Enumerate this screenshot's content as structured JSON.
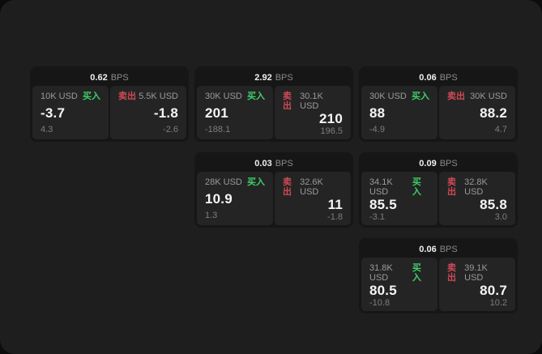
{
  "labels": {
    "buy": "买入",
    "sell": "卖出",
    "bps": "BPS"
  },
  "colors": {
    "page_bg": "#0c0c0c",
    "window_bg": "#1e1e1e",
    "card_bg": "#161616",
    "tile_bg": "#242424",
    "text_primary": "#f0f0f0",
    "text_muted": "#8a8a8a",
    "buy_accent": "#3ecf68",
    "sell_accent": "#cf4a56"
  },
  "cards": [
    {
      "bps": "0.62",
      "col": 1,
      "row": 1,
      "buy": {
        "amount": "10K USD",
        "price": "-3.7",
        "change": "4.3"
      },
      "sell": {
        "amount": "5.5K USD",
        "price": "-1.8",
        "change": "-2.6"
      }
    },
    {
      "bps": "2.92",
      "col": 2,
      "row": 1,
      "buy": {
        "amount": "30K USD",
        "price": "201",
        "change": "-188.1"
      },
      "sell": {
        "amount": "30.1K USD",
        "price": "210",
        "change": "196.5"
      }
    },
    {
      "bps": "0.06",
      "col": 3,
      "row": 1,
      "buy": {
        "amount": "30K USD",
        "price": "88",
        "change": "-4.9"
      },
      "sell": {
        "amount": "30K USD",
        "price": "88.2",
        "change": "4.7"
      }
    },
    {
      "bps": "0.03",
      "col": 2,
      "row": 2,
      "buy": {
        "amount": "28K USD",
        "price": "10.9",
        "change": "1.3"
      },
      "sell": {
        "amount": "32.6K USD",
        "price": "11",
        "change": "-1.8"
      }
    },
    {
      "bps": "0.09",
      "col": 3,
      "row": 2,
      "buy": {
        "amount": "34.1K USD",
        "price": "85.5",
        "change": "-3.1"
      },
      "sell": {
        "amount": "32.8K USD",
        "price": "85.8",
        "change": "3.0"
      }
    },
    {
      "bps": "0.06",
      "col": 3,
      "row": 3,
      "buy": {
        "amount": "31.8K USD",
        "price": "80.5",
        "change": "-10.8"
      },
      "sell": {
        "amount": "39.1K USD",
        "price": "80.7",
        "change": "10.2"
      }
    }
  ]
}
